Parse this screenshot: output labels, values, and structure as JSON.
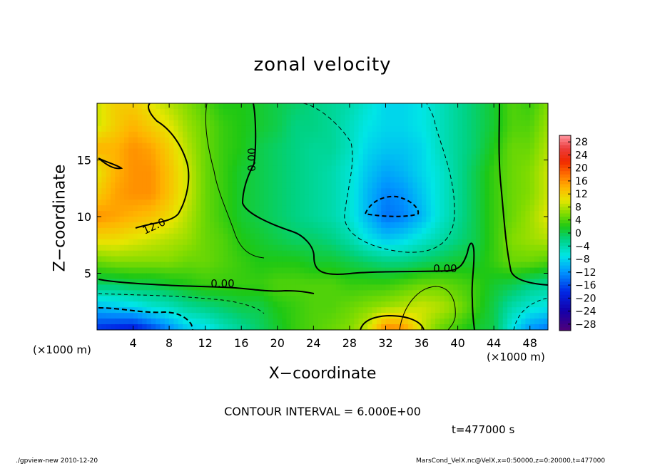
{
  "chart_data": {
    "type": "heatmap",
    "title": "zonal velocity",
    "xlabel": "X−coordinate",
    "ylabel": "Z−coordinate",
    "x_unit_label": "(×1000 m)",
    "xlim": [
      0,
      50
    ],
    "ylim": [
      0,
      20
    ],
    "x_ticks": [
      "4",
      "8",
      "12",
      "16",
      "20",
      "24",
      "28",
      "32",
      "36",
      "40",
      "44",
      "48"
    ],
    "y_ticks": [
      "5",
      "10",
      "15"
    ],
    "colorbar_ticks": [
      "28",
      "24",
      "20",
      "16",
      "12",
      "8",
      "4",
      "0",
      "−4",
      "−8",
      "−12",
      "−16",
      "−20",
      "−24",
      "−28"
    ],
    "colorbar_range": [
      -30,
      30
    ],
    "contour_labels": [
      "12.0",
      "0.00",
      "0.00",
      "0.00"
    ],
    "contour_interval_text": "CONTOUR INTERVAL = 6.000E+00",
    "time_text": "t=477000 s",
    "grid_columns_x_km": [
      0,
      2,
      4,
      6,
      8,
      10,
      12,
      14,
      16,
      18,
      20,
      22,
      24,
      26,
      28,
      30,
      32,
      34,
      36,
      38,
      40,
      42,
      44,
      46,
      48,
      50
    ],
    "grid_rows_z_km": [
      20,
      18,
      16,
      14,
      12,
      10,
      8,
      6,
      4,
      2,
      0
    ],
    "values": [
      [
        9,
        12,
        12,
        10,
        8,
        6,
        4,
        2,
        2,
        1,
        0,
        -1,
        -2,
        -3,
        -4,
        -6,
        -8,
        -8,
        -7,
        -5,
        -3,
        -1,
        1,
        4,
        3,
        6
      ],
      [
        9,
        12,
        14,
        12,
        10,
        7,
        5,
        3,
        2,
        1,
        0,
        -2,
        -2,
        -3,
        -5,
        -7,
        -8,
        -8,
        -7,
        -5,
        -3,
        -1,
        1,
        4,
        4,
        7
      ],
      [
        14,
        14,
        16,
        15,
        12,
        8,
        5,
        3,
        2,
        0,
        -1,
        -2,
        -3,
        -3,
        -5,
        -8,
        -9,
        -9,
        -8,
        -5,
        -3,
        -1,
        2,
        5,
        5,
        8
      ],
      [
        10,
        14,
        16,
        16,
        13,
        9,
        5,
        3,
        1,
        0,
        -1,
        -2,
        -3,
        -4,
        -6,
        -9,
        -11,
        -10,
        -8,
        -6,
        -3,
        0,
        3,
        5,
        6,
        9
      ],
      [
        12,
        15,
        16,
        16,
        13,
        9,
        5,
        3,
        1,
        0,
        -1,
        -2,
        -3,
        -4,
        -6,
        -10,
        -13,
        -12,
        -9,
        -6,
        -3,
        0,
        3,
        5,
        6,
        9
      ],
      [
        16,
        15,
        14,
        13,
        11,
        8,
        5,
        3,
        1,
        0,
        -1,
        -2,
        -3,
        -4,
        -6,
        -10,
        -14,
        -13,
        -10,
        -6,
        -3,
        0,
        3,
        5,
        7,
        10
      ],
      [
        11,
        11,
        10,
        9,
        8,
        7,
        5,
        4,
        2,
        1,
        0,
        -1,
        -1,
        -2,
        -4,
        -7,
        -9,
        -8,
        -6,
        -4,
        -2,
        0,
        3,
        6,
        7,
        8
      ],
      [
        5,
        6,
        6,
        6,
        6,
        5,
        5,
        4,
        3,
        2,
        2,
        2,
        1,
        1,
        0,
        -1,
        -2,
        -2,
        -1,
        0,
        1,
        1,
        3,
        5,
        5,
        4
      ],
      [
        -1,
        -1,
        0,
        0,
        1,
        2,
        3,
        3,
        3,
        3,
        4,
        4,
        4,
        4,
        3,
        3,
        3,
        4,
        5,
        5,
        4,
        3,
        1,
        0,
        -2,
        -3
      ],
      [
        -10,
        -9,
        -8,
        -6,
        -5,
        -3,
        -2,
        -1,
        0,
        0,
        2,
        3,
        4,
        4,
        5,
        6,
        7,
        8,
        9,
        8,
        6,
        3,
        0,
        -4,
        -6,
        -7
      ],
      [
        -18,
        -19,
        -20,
        -17,
        -13,
        -9,
        -8,
        -5,
        -3,
        -1,
        1,
        3,
        4,
        5,
        6,
        9,
        17,
        16,
        9,
        5,
        3,
        1,
        0,
        -7,
        -12,
        -14
      ]
    ]
  },
  "footer": {
    "left": "./gpview-new  2010-12-20",
    "right": "MarsCond_VelX.nc@VelX,x=0:50000,z=0:20000,t=477000"
  }
}
